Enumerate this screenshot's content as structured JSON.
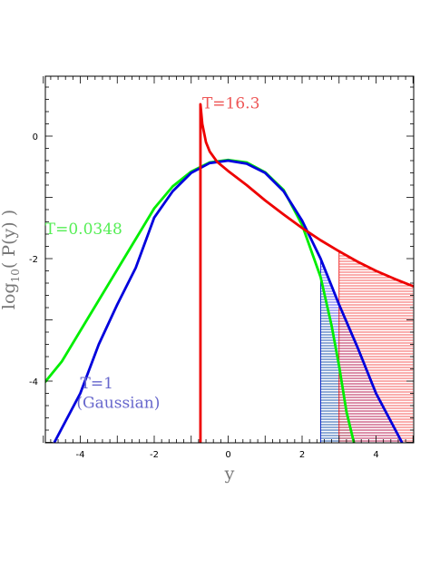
{
  "chart_data": {
    "type": "line",
    "xlabel": "y",
    "ylabel_main": "log",
    "ylabel_sub": "10",
    "ylabel_rest": "( P(y) )",
    "xlim": [
      -5,
      5
    ],
    "ylim": [
      -5,
      1.0
    ],
    "xticks": [
      -4,
      -2,
      0,
      2,
      4
    ],
    "xtick_labels": [
      "-4",
      "-2",
      "0",
      "2",
      "4"
    ],
    "yticks": [
      0,
      -2,
      -4
    ],
    "ytick_labels": [
      "0",
      "-2",
      "-4"
    ],
    "grid": false,
    "series": [
      {
        "name": "T=0.0348",
        "color": "#00ee00",
        "x": [
          -5.0,
          -4.5,
          -4.0,
          -3.5,
          -3.0,
          -2.5,
          -2.0,
          -1.5,
          -1.0,
          -0.5,
          0.0,
          0.5,
          1.0,
          1.5,
          2.0,
          2.5,
          2.8,
          3.0,
          3.2,
          3.4
        ],
        "y": [
          -4.05,
          -3.68,
          -3.18,
          -2.68,
          -2.18,
          -1.68,
          -1.18,
          -0.82,
          -0.58,
          -0.43,
          -0.39,
          -0.43,
          -0.59,
          -0.88,
          -1.45,
          -2.3,
          -3.1,
          -3.75,
          -4.5,
          -5.0
        ]
      },
      {
        "name": "T=1",
        "name_line2": "(Gaussian)",
        "color": "#0000dd",
        "x": [
          -4.7,
          -4.5,
          -4.0,
          -3.5,
          -3.0,
          -2.5,
          -2.0,
          -1.5,
          -1.0,
          -0.5,
          0.0,
          0.5,
          1.0,
          1.5,
          2.0,
          2.5,
          3.0,
          3.5,
          4.0,
          4.5,
          4.7
        ],
        "y": [
          -5.0,
          -4.77,
          -4.2,
          -3.4,
          -2.75,
          -2.15,
          -1.33,
          -0.9,
          -0.6,
          -0.44,
          -0.4,
          -0.45,
          -0.6,
          -0.9,
          -1.38,
          -2.0,
          -2.75,
          -3.45,
          -4.2,
          -4.77,
          -5.0
        ]
      },
      {
        "name": "T=16.3",
        "color": "#ee0000",
        "x": [
          -0.75,
          -0.75,
          -0.7,
          -0.6,
          -0.5,
          -0.3,
          0.0,
          0.5,
          1.0,
          1.5,
          2.0,
          2.5,
          3.0,
          3.5,
          4.0,
          4.5,
          5.0
        ],
        "y": [
          -5.0,
          0.52,
          0.2,
          -0.1,
          -0.25,
          -0.42,
          -0.57,
          -0.8,
          -1.05,
          -1.28,
          -1.5,
          -1.7,
          -1.88,
          -2.05,
          -2.2,
          -2.33,
          -2.45
        ]
      }
    ],
    "shaded_regions": [
      {
        "color": "#00ee00",
        "from_x": 2.5,
        "to_x": 3.4,
        "series": "T=0.0348"
      },
      {
        "color": "#0000dd",
        "from_x": 2.5,
        "to_x": 4.7,
        "series": "T=1"
      },
      {
        "color": "#ee0000",
        "from_x": 3.0,
        "to_x": 5.0,
        "series": "T=16.3"
      }
    ],
    "annotations": [
      {
        "text": "T=16.3",
        "color": "#ee5555",
        "x": -0.7,
        "y": 0.45
      },
      {
        "text": "T=0.0348",
        "color": "#55ee55",
        "x": -4.95,
        "y": -1.6
      },
      {
        "text": "T=1",
        "color": "#6666cc",
        "x": -4.0,
        "y": -4.12
      },
      {
        "text": "(Gaussian)",
        "color": "#6666cc",
        "x": -4.1,
        "y": -4.44
      }
    ]
  }
}
